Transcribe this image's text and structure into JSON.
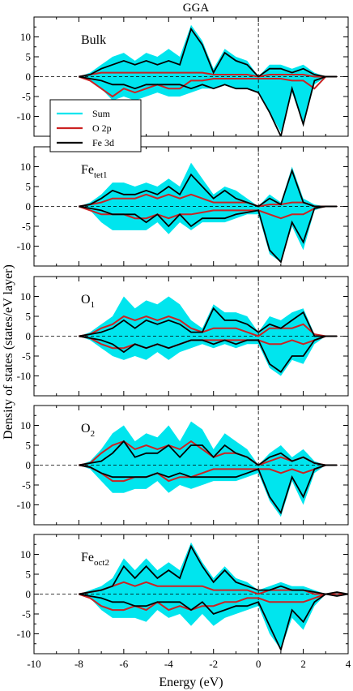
{
  "chart_data": {
    "type": "area",
    "title": "GGA",
    "xlabel": "Energy (eV)",
    "ylabel": "Density of states (states/eV layer)",
    "xlim": [
      -10,
      4
    ],
    "ylim": [
      -15,
      15
    ],
    "xticks": [
      -10,
      -8,
      -6,
      -4,
      -2,
      0,
      2,
      4
    ],
    "yticks": [
      10,
      5,
      0,
      -5,
      -10
    ],
    "legend": {
      "placement": "left, first panel",
      "entries": [
        {
          "label": "Sum",
          "color": "#00e5ee"
        },
        {
          "label": "O 2p",
          "color": "#cc2222"
        },
        {
          "label": "Fe 3d",
          "color": "#000000"
        }
      ]
    },
    "fermi_level_x": 0,
    "colors": {
      "sum": "#00e5ee",
      "o2p": "#cc2222",
      "fe3d": "#000000"
    },
    "panels": [
      {
        "label": "Bulk",
        "sub": "",
        "x": [
          -8,
          -7.5,
          -7,
          -6.5,
          -6,
          -5.5,
          -5,
          -4.5,
          -4,
          -3.5,
          -3,
          -2.5,
          -2,
          -1.5,
          -1,
          -0.5,
          0,
          0.5,
          1,
          1.5,
          2,
          2.5,
          3,
          3.5
        ],
        "series": [
          {
            "name": "Sum",
            "up": [
              0,
              1,
              3,
              5,
              6,
              4,
              6,
              5,
              7,
              5,
              13,
              9,
              2,
              7,
              5,
              4,
              0,
              3,
              3,
              2,
              3,
              1,
              0,
              0
            ],
            "down": [
              0,
              -1,
              -3,
              -6,
              -5,
              -6,
              -5,
              -4,
              -5,
              -5,
              -4,
              -3,
              -3,
              -2,
              -3,
              -3,
              -4,
              -9,
              -14,
              -4,
              -12,
              -2,
              0,
              0
            ]
          },
          {
            "name": "O 2p",
            "up": [
              0,
              0.5,
              1,
              1,
              1,
              1,
              1,
              1,
              1,
              1,
              1,
              1,
              0.5,
              0.5,
              0.5,
              0.5,
              0,
              0.5,
              0.5,
              0.5,
              0.5,
              0,
              0,
              0
            ],
            "down": [
              0,
              -1,
              -3,
              -5,
              -3,
              -4,
              -3,
              -2,
              -3,
              -3,
              -1,
              -1,
              -0.5,
              -0.5,
              -0.5,
              -0.5,
              -0.5,
              -0.5,
              -0.5,
              -1,
              -1,
              -3,
              0,
              0
            ]
          },
          {
            "name": "Fe 3d",
            "up": [
              0,
              0.5,
              2,
              3,
              4,
              3,
              4,
              3,
              4,
              3,
              12,
              8,
              1,
              6,
              4,
              3,
              0,
              2,
              2,
              1,
              2,
              0.5,
              0,
              0
            ],
            "down": [
              0,
              -0.5,
              -1,
              -2,
              -2,
              -3,
              -2,
              -2,
              -2,
              -2,
              -3,
              -2,
              -3,
              -2,
              -3,
              -3,
              -4,
              -9,
              -15,
              -3,
              -12,
              -1,
              0,
              0
            ]
          }
        ]
      },
      {
        "label": "Fe",
        "sub": "tet1",
        "x": [
          -8,
          -7.5,
          -7,
          -6.5,
          -6,
          -5.5,
          -5,
          -4.5,
          -4,
          -3.5,
          -3,
          -2.5,
          -2,
          -1.5,
          -1,
          -0.5,
          0,
          0.5,
          1,
          1.5,
          2,
          2.5,
          3,
          3.5
        ],
        "series": [
          {
            "name": "Sum",
            "up": [
              0,
              1,
              3,
              6,
              6,
              5,
              6,
              5,
              7,
              5,
              11,
              7,
              3,
              5,
              4,
              2,
              0,
              3,
              1,
              10,
              2,
              0.5,
              0,
              0
            ],
            "down": [
              0,
              -1,
              -4,
              -6,
              -6,
              -6,
              -6,
              -4,
              -7,
              -4,
              -6,
              -4,
              -4,
              -4,
              -3,
              -2,
              -2,
              -12,
              -14,
              -5,
              -11,
              -1,
              0,
              0
            ]
          },
          {
            "name": "O 2p",
            "up": [
              0,
              0.5,
              1,
              2,
              2,
              2,
              3,
              2,
              3,
              2,
              3,
              2,
              1,
              1,
              1,
              1,
              0,
              0.5,
              0.5,
              1,
              1,
              0,
              0,
              0
            ],
            "down": [
              0,
              -1,
              -2,
              -2,
              -2,
              -3,
              -3,
              -2,
              -3,
              -2,
              -2,
              -1.5,
              -1,
              -1,
              -1,
              -1,
              -1,
              -2,
              -3,
              -2,
              -2,
              -0.5,
              0,
              0
            ]
          },
          {
            "name": "Fe 3d",
            "up": [
              0,
              0.5,
              2,
              4,
              3,
              3,
              4,
              3,
              5,
              3,
              8,
              5,
              2,
              4,
              2,
              1,
              0,
              2,
              0.5,
              9,
              1,
              0,
              0,
              0
            ],
            "down": [
              0,
              -0.5,
              -1,
              -2,
              -2,
              -2,
              -4,
              -2,
              -5,
              -2,
              -5,
              -3,
              -3,
              -3,
              -2,
              -1.5,
              -1,
              -11,
              -14,
              -4,
              -9,
              -0.5,
              0,
              0
            ]
          }
        ]
      },
      {
        "label": "O",
        "sub": "1",
        "x": [
          -8,
          -7.5,
          -7,
          -6.5,
          -6,
          -5.5,
          -5,
          -4.5,
          -4,
          -3.5,
          -3,
          -2.5,
          -2,
          -1.5,
          -1,
          -0.5,
          0,
          0.5,
          1,
          1.5,
          2,
          2.5,
          3,
          3.5
        ],
        "series": [
          {
            "name": "Sum",
            "up": [
              0,
              1,
              3,
              5,
              10,
              7,
              9,
              8,
              10,
              8,
              4,
              2,
              8,
              6,
              6,
              5,
              1,
              5,
              4,
              6,
              7,
              0.5,
              0,
              0
            ],
            "down": [
              0,
              -1,
              -3,
              -5,
              -6,
              -5,
              -6,
              -4,
              -6,
              -4,
              -3,
              -2,
              -3,
              -2,
              -3,
              -2,
              -2,
              -8,
              -10,
              -6,
              -7,
              -2,
              0,
              0
            ]
          },
          {
            "name": "O 2p",
            "up": [
              0,
              0.5,
              2,
              3,
              5,
              4,
              5,
              4,
              5,
              4,
              2,
              1,
              2,
              2,
              2,
              1,
              0,
              2,
              2,
              2,
              3,
              0.5,
              0,
              0
            ],
            "down": [
              0,
              -0.5,
              -2,
              -3,
              -3,
              -2,
              -3,
              -2,
              -3,
              -2,
              -1,
              -1,
              -1,
              -1,
              -1,
              -1,
              -1,
              -2,
              -2,
              -1,
              -2,
              -1,
              0,
              0
            ]
          },
          {
            "name": "Fe 3d",
            "up": [
              0,
              0.5,
              1,
              2,
              4,
              2,
              4,
              3,
              4,
              3,
              1,
              1,
              7,
              4,
              4,
              3,
              1,
              3,
              2,
              4,
              6,
              0,
              0,
              0
            ],
            "down": [
              0,
              -0.5,
              -1,
              -2,
              -4,
              -2,
              -3,
              -2,
              -3,
              -2,
              -1,
              -1,
              -2,
              -1,
              -2,
              -1,
              -1,
              -7,
              -9,
              -5,
              -5,
              -1,
              0,
              0
            ]
          }
        ]
      },
      {
        "label": "O",
        "sub": "2",
        "x": [
          -8,
          -7.5,
          -7,
          -6.5,
          -6,
          -5.5,
          -5,
          -4.5,
          -4,
          -3.5,
          -3,
          -2.5,
          -2,
          -1.5,
          -1,
          -0.5,
          0,
          0.5,
          1,
          1.5,
          2,
          2.5,
          3,
          3.5
        ],
        "series": [
          {
            "name": "Sum",
            "up": [
              0,
              1,
              4,
              8,
              10,
              6,
              8,
              7,
              10,
              6,
              11,
              9,
              4,
              8,
              6,
              4,
              0,
              3,
              5,
              2,
              4,
              1,
              0,
              0
            ],
            "down": [
              0,
              -1,
              -4,
              -7,
              -7,
              -6,
              -6,
              -4,
              -7,
              -5,
              -6,
              -5,
              -4,
              -4,
              -4,
              -3,
              -2,
              -9,
              -13,
              -4,
              -10,
              -2,
              0,
              0
            ]
          },
          {
            "name": "O 2p",
            "up": [
              0,
              0.5,
              3,
              5,
              6,
              4,
              5,
              4,
              5,
              4,
              6,
              4,
              2,
              3,
              3,
              2,
              0,
              1,
              2,
              1,
              2,
              0.5,
              0,
              0
            ],
            "down": [
              0,
              -0.5,
              -2,
              -4,
              -4,
              -3,
              -3,
              -2,
              -4,
              -3,
              -3,
              -2,
              -1,
              -1,
              -1,
              -1,
              -1,
              -1,
              -2,
              -1,
              -2,
              -1,
              0,
              0
            ]
          },
          {
            "name": "Fe 3d",
            "up": [
              0,
              0.5,
              1,
              3,
              6,
              2,
              3,
              3,
              5,
              2,
              5,
              5,
              2,
              5,
              3,
              2,
              0,
              2,
              3,
              1,
              2,
              0.5,
              0,
              0
            ],
            "down": [
              0,
              -0.5,
              -2,
              -3,
              -3,
              -3,
              -3,
              -2,
              -3,
              -2,
              -3,
              -3,
              -3,
              -3,
              -3,
              -2,
              -1,
              -8,
              -12,
              -3,
              -8,
              -1,
              0,
              0
            ]
          }
        ]
      },
      {
        "label": "Fe",
        "sub": "oct2",
        "x": [
          -8,
          -7.5,
          -7,
          -6.5,
          -6,
          -5.5,
          -5,
          -4.5,
          -4,
          -3.5,
          -3,
          -2.5,
          -2,
          -1.5,
          -1,
          -0.5,
          0,
          0.5,
          1,
          1.5,
          2,
          2.5,
          3,
          3.5,
          4
        ],
        "series": [
          {
            "name": "Sum",
            "up": [
              0,
              1,
              2,
              4,
              9,
              6,
              9,
              6,
              8,
              6,
              13,
              8,
              4,
              7,
              4,
              3,
              1,
              2,
              3,
              2,
              2,
              1,
              0,
              0.5,
              0
            ],
            "down": [
              0,
              -1,
              -4,
              -6,
              -6,
              -6,
              -7,
              -4,
              -6,
              -5,
              -8,
              -5,
              -8,
              -6,
              -5,
              -4,
              -3,
              -10,
              -14,
              -6,
              -9,
              -3,
              0,
              -0.5,
              0
            ]
          },
          {
            "name": "O 2p",
            "up": [
              0,
              0.5,
              1,
              2,
              3,
              2,
              3,
              2,
              2,
              2,
              2,
              2,
              1,
              1,
              1,
              1,
              0,
              1,
              1,
              1,
              1,
              0,
              0,
              0,
              0
            ],
            "down": [
              0,
              -1,
              -3,
              -4,
              -4,
              -3,
              -4,
              -2,
              -4,
              -3,
              -4,
              -3,
              -3,
              -2,
              -2,
              -1,
              -1,
              -2,
              -2,
              -2,
              -2,
              -1,
              0,
              0,
              0
            ]
          },
          {
            "name": "Fe 3d",
            "up": [
              0,
              0.5,
              1,
              2,
              7,
              4,
              7,
              4,
              6,
              4,
              12,
              7,
              3,
              6,
              3,
              2,
              1,
              1,
              2,
              1,
              1,
              0.5,
              0,
              0.5,
              0
            ],
            "down": [
              0,
              -0.5,
              -1,
              -2,
              -2,
              -3,
              -3,
              -2,
              -2,
              -2,
              -4,
              -2,
              -5,
              -4,
              -3,
              -3,
              -2,
              -8,
              -14,
              -4,
              -7,
              -2,
              0,
              -0.5,
              0
            ]
          }
        ]
      }
    ]
  }
}
